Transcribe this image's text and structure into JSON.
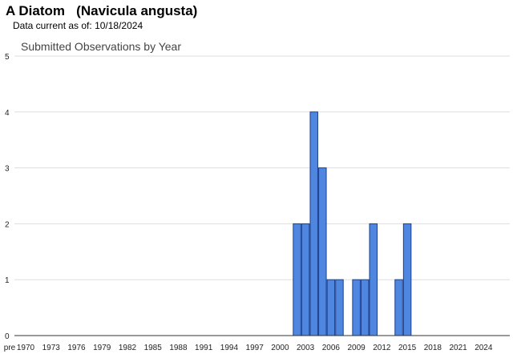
{
  "header": {
    "species": "A Diatom",
    "scientific_name": "(Navicula angusta)",
    "date_label": "Data current as of:",
    "date_value": "10/18/2024"
  },
  "colors": {
    "bar_fill": "#4f86e0",
    "bar_stroke": "#1a3f8f",
    "grid": "#dddddd",
    "axis": "#333333"
  },
  "chart_data": {
    "type": "bar",
    "title": "Submitted Observations by Year",
    "xlabel": "",
    "ylabel": "",
    "ylim": [
      0,
      5
    ],
    "yticks": [
      0,
      1,
      2,
      3,
      4,
      5
    ],
    "grid": true,
    "x_tick_labels": [
      "pre",
      "1970",
      "1973",
      "1976",
      "1979",
      "1982",
      "1985",
      "1988",
      "1991",
      "1994",
      "1997",
      "2000",
      "2003",
      "2006",
      "2009",
      "2012",
      "2015",
      "2018",
      "2021",
      "2024"
    ],
    "categories": [
      "pre",
      "1970",
      "1971",
      "1972",
      "1973",
      "1974",
      "1975",
      "1976",
      "1977",
      "1978",
      "1979",
      "1980",
      "1981",
      "1982",
      "1983",
      "1984",
      "1985",
      "1986",
      "1987",
      "1988",
      "1989",
      "1990",
      "1991",
      "1992",
      "1993",
      "1994",
      "1995",
      "1996",
      "1997",
      "1998",
      "1999",
      "2000",
      "2001",
      "2002",
      "2003",
      "2004",
      "2005",
      "2006",
      "2007",
      "2008",
      "2009",
      "2010",
      "2011",
      "2012",
      "2013",
      "2014",
      "2015",
      "2016",
      "2017",
      "2018",
      "2019",
      "2020",
      "2021",
      "2022",
      "2023",
      "2024"
    ],
    "values": [
      0,
      0,
      0,
      0,
      0,
      0,
      0,
      0,
      0,
      0,
      0,
      0,
      0,
      0,
      0,
      0,
      0,
      0,
      0,
      0,
      0,
      0,
      0,
      0,
      0,
      0,
      0,
      0,
      0,
      0,
      0,
      0,
      0,
      2,
      2,
      4,
      3,
      1,
      1,
      0,
      1,
      1,
      2,
      0,
      0,
      1,
      2,
      0,
      0,
      0,
      0,
      0,
      0,
      0,
      0,
      0
    ]
  }
}
